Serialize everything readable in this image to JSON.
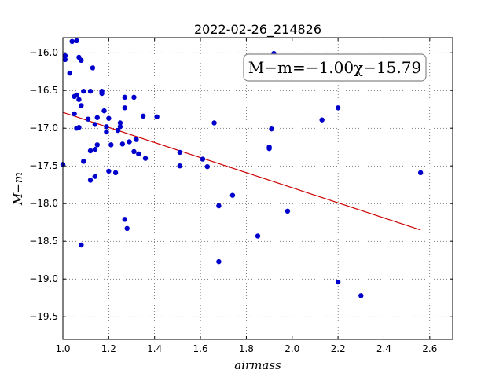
{
  "chart_data": {
    "type": "scatter",
    "title": "2022-02-26_214826",
    "xlabel": "airmass",
    "ylabel": "M−m",
    "annotation": "M−m=−1.00χ−15.79",
    "xlim": [
      1.0,
      2.7
    ],
    "ylim": [
      -19.8,
      -15.8
    ],
    "y_inverted_display": true,
    "xticks": [
      "1.0",
      "1.2",
      "1.4",
      "1.6",
      "1.8",
      "2.0",
      "2.2",
      "2.4",
      "2.6"
    ],
    "xtick_values": [
      1.0,
      1.2,
      1.4,
      1.6,
      1.8,
      2.0,
      2.2,
      2.4,
      2.6
    ],
    "yticks": [
      "−16.0",
      "−16.5",
      "−17.0",
      "−17.5",
      "−18.0",
      "−18.5",
      "−19.0",
      "−19.5"
    ],
    "ytick_values": [
      -16.0,
      -16.5,
      -17.0,
      -17.5,
      -18.0,
      -18.5,
      -19.0,
      -19.5
    ],
    "grid": true,
    "colors": {
      "points": "#0000cc",
      "fit_line": "#cc0000"
    },
    "points": [
      {
        "x": 1.0,
        "y": -17.48
      },
      {
        "x": 1.01,
        "y": -16.04
      },
      {
        "x": 1.01,
        "y": -16.09
      },
      {
        "x": 1.03,
        "y": -16.27
      },
      {
        "x": 1.04,
        "y": -15.85
      },
      {
        "x": 1.05,
        "y": -16.58
      },
      {
        "x": 1.05,
        "y": -16.81
      },
      {
        "x": 1.06,
        "y": -16.56
      },
      {
        "x": 1.06,
        "y": -15.84
      },
      {
        "x": 1.06,
        "y": -17.0
      },
      {
        "x": 1.07,
        "y": -16.62
      },
      {
        "x": 1.07,
        "y": -16.06
      },
      {
        "x": 1.07,
        "y": -16.99
      },
      {
        "x": 1.08,
        "y": -16.7
      },
      {
        "x": 1.08,
        "y": -16.1
      },
      {
        "x": 1.09,
        "y": -17.44
      },
      {
        "x": 1.09,
        "y": -16.51
      },
      {
        "x": 1.08,
        "y": -18.55
      },
      {
        "x": 1.11,
        "y": -16.88
      },
      {
        "x": 1.12,
        "y": -17.3
      },
      {
        "x": 1.12,
        "y": -17.69
      },
      {
        "x": 1.12,
        "y": -16.51
      },
      {
        "x": 1.13,
        "y": -16.2
      },
      {
        "x": 1.14,
        "y": -17.28
      },
      {
        "x": 1.14,
        "y": -16.95
      },
      {
        "x": 1.14,
        "y": -17.64
      },
      {
        "x": 1.15,
        "y": -16.86
      },
      {
        "x": 1.15,
        "y": -17.22
      },
      {
        "x": 1.17,
        "y": -16.51
      },
      {
        "x": 1.17,
        "y": -16.54
      },
      {
        "x": 1.18,
        "y": -16.77
      },
      {
        "x": 1.19,
        "y": -17.05
      },
      {
        "x": 1.19,
        "y": -16.98
      },
      {
        "x": 1.2,
        "y": -16.87
      },
      {
        "x": 1.2,
        "y": -17.57
      },
      {
        "x": 1.21,
        "y": -17.22
      },
      {
        "x": 1.23,
        "y": -17.59
      },
      {
        "x": 1.24,
        "y": -17.03
      },
      {
        "x": 1.25,
        "y": -16.93
      },
      {
        "x": 1.25,
        "y": -16.98
      },
      {
        "x": 1.26,
        "y": -17.21
      },
      {
        "x": 1.27,
        "y": -16.59
      },
      {
        "x": 1.27,
        "y": -16.73
      },
      {
        "x": 1.27,
        "y": -18.21
      },
      {
        "x": 1.28,
        "y": -18.33
      },
      {
        "x": 1.29,
        "y": -17.18
      },
      {
        "x": 1.31,
        "y": -16.59
      },
      {
        "x": 1.31,
        "y": -17.31
      },
      {
        "x": 1.32,
        "y": -17.15
      },
      {
        "x": 1.33,
        "y": -17.34
      },
      {
        "x": 1.35,
        "y": -16.84
      },
      {
        "x": 1.36,
        "y": -17.4
      },
      {
        "x": 1.41,
        "y": -16.85
      },
      {
        "x": 1.51,
        "y": -17.5
      },
      {
        "x": 1.51,
        "y": -17.32
      },
      {
        "x": 1.61,
        "y": -17.41
      },
      {
        "x": 1.63,
        "y": -17.51
      },
      {
        "x": 1.66,
        "y": -16.93
      },
      {
        "x": 1.68,
        "y": -18.03
      },
      {
        "x": 1.68,
        "y": -18.77
      },
      {
        "x": 1.74,
        "y": -17.89
      },
      {
        "x": 1.85,
        "y": -18.43
      },
      {
        "x": 1.9,
        "y": -17.27
      },
      {
        "x": 1.9,
        "y": -17.25
      },
      {
        "x": 1.91,
        "y": -17.01
      },
      {
        "x": 1.92,
        "y": -16.01
      },
      {
        "x": 1.98,
        "y": -18.1
      },
      {
        "x": 2.13,
        "y": -16.89
      },
      {
        "x": 2.2,
        "y": -16.73
      },
      {
        "x": 2.2,
        "y": -19.04
      },
      {
        "x": 2.3,
        "y": -19.22
      },
      {
        "x": 2.56,
        "y": -17.59
      }
    ],
    "fit_line": {
      "x": [
        1.0,
        2.56
      ],
      "y": [
        -16.79,
        -18.35
      ]
    }
  }
}
